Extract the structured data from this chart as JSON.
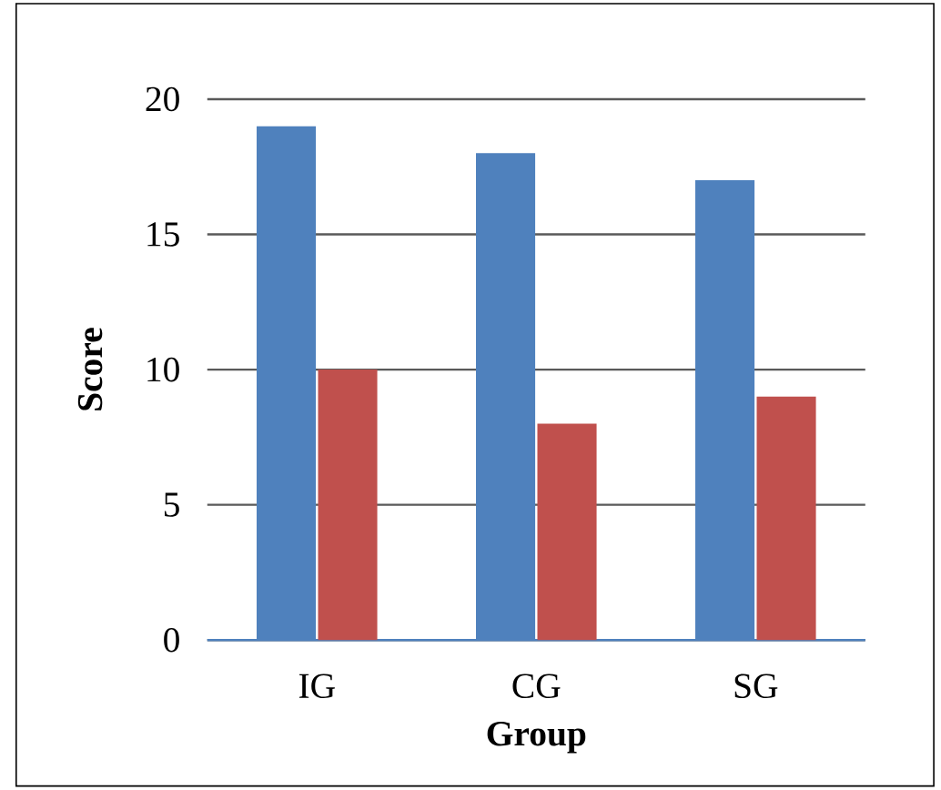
{
  "chart_data": {
    "type": "bar",
    "xlabel": "Group",
    "ylabel": "Score",
    "categories": [
      "IG",
      "CG",
      "SG"
    ],
    "series": [
      {
        "color": "#4f81bd",
        "values": [
          19,
          18,
          17
        ]
      },
      {
        "color": "#c0504d",
        "values": [
          10,
          8,
          9
        ]
      }
    ],
    "ylim": [
      0,
      20
    ],
    "yticks": [
      0,
      5,
      10,
      15,
      20
    ],
    "grid": "y"
  }
}
